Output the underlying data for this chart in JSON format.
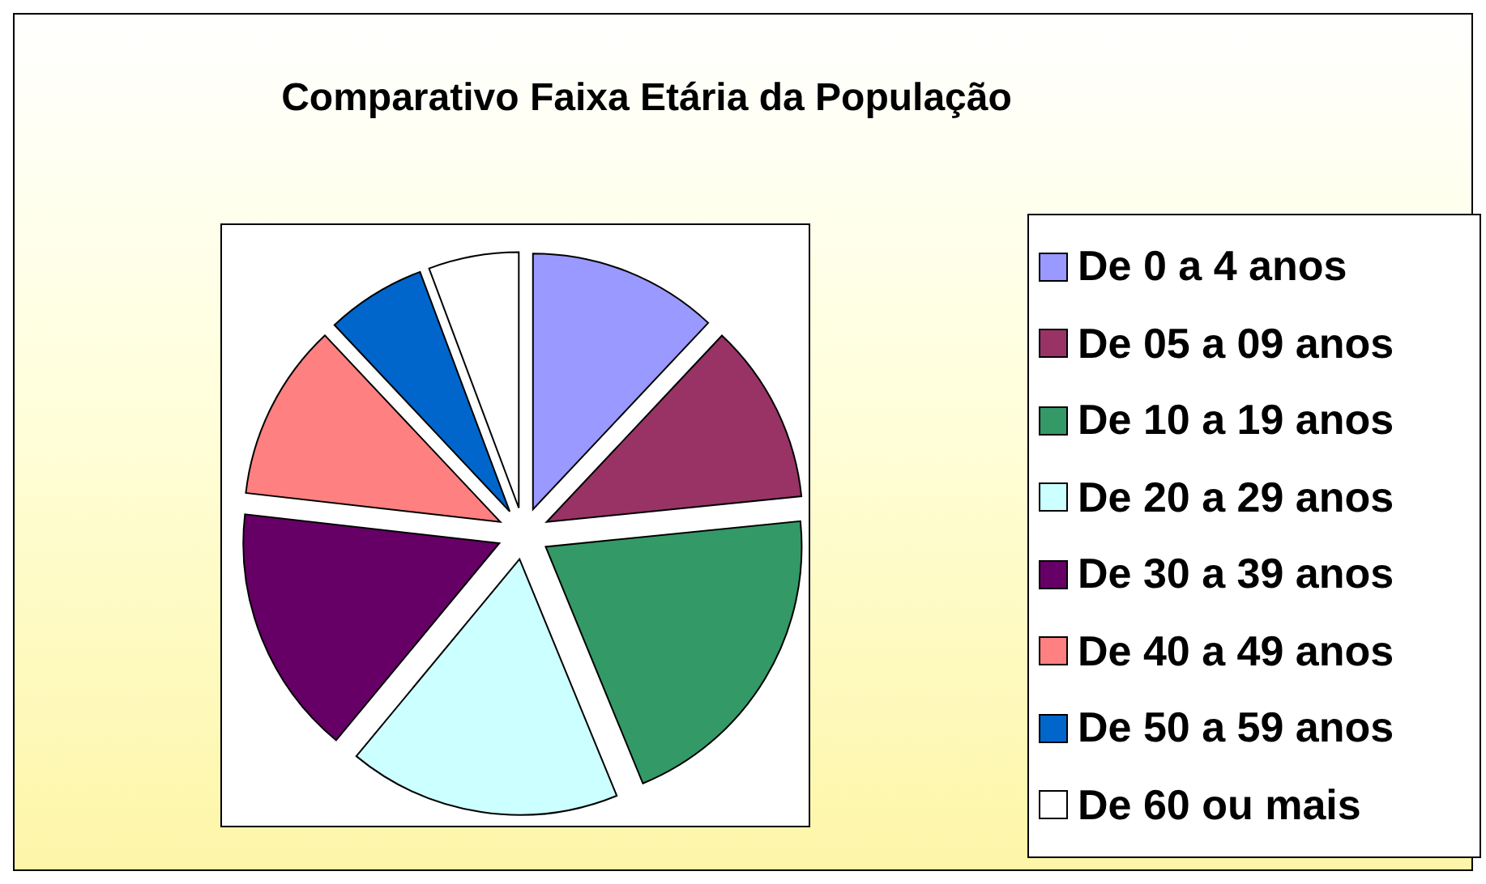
{
  "chart_data": {
    "type": "pie",
    "title": "Comparativo Faixa Etária da População",
    "categories": [
      "De 0 a 4 anos",
      "De 05 a 09 anos",
      "De 10 a 19 anos",
      "De 20 a 29 anos",
      "De 30 a 39 anos",
      "De 40 a 49 anos",
      "De 50 a 59 anos",
      "De 60 ou mais"
    ],
    "values": [
      12,
      11.4,
      20.4,
      17.2,
      15.8,
      11.2,
      6.3,
      5.7
    ],
    "colors": [
      "#9999ff",
      "#993366",
      "#339966",
      "#ccffff",
      "#660066",
      "#ff8080",
      "#0066cc",
      "#ffffff"
    ],
    "legend": "right"
  }
}
